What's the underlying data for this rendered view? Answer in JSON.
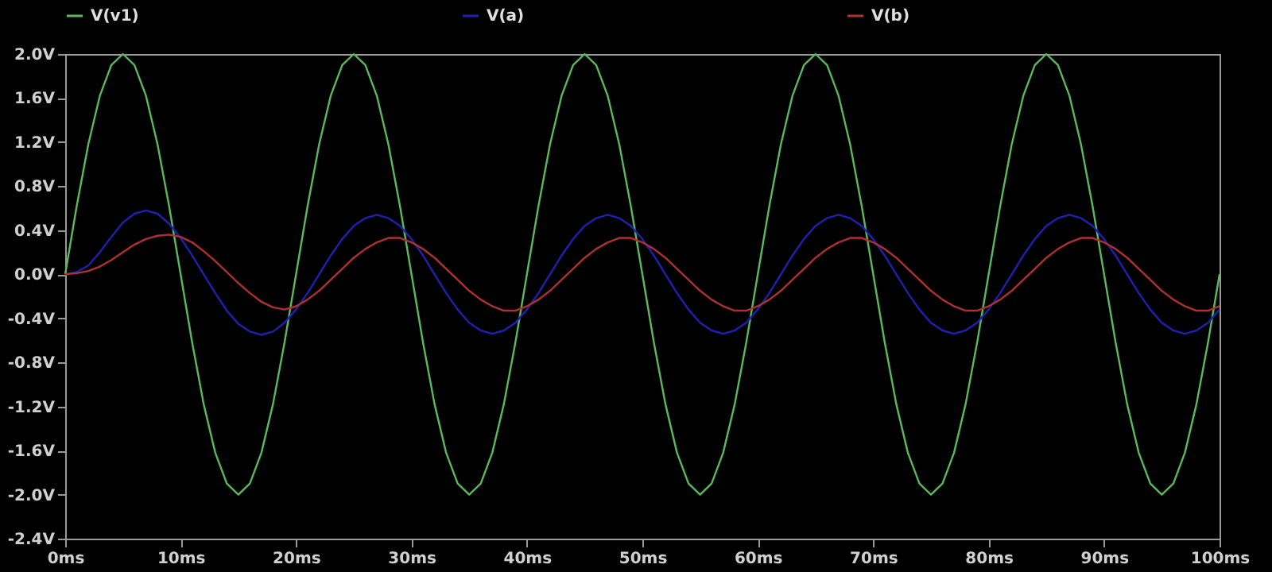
{
  "chart_data": {
    "type": "line",
    "x": [
      0,
      1,
      2,
      3,
      4,
      5,
      6,
      7,
      8,
      9,
      10,
      11,
      12,
      13,
      14,
      15,
      16,
      17,
      18,
      19,
      20,
      21,
      22,
      23,
      24,
      25,
      26,
      27,
      28,
      29,
      30,
      31,
      32,
      33,
      34,
      35,
      36,
      37,
      38,
      39,
      40,
      41,
      42,
      43,
      44,
      45,
      46,
      47,
      48,
      49,
      50,
      51,
      52,
      53,
      54,
      55,
      56,
      57,
      58,
      59,
      60,
      61,
      62,
      63,
      64,
      65,
      66,
      67,
      68,
      69,
      70,
      71,
      72,
      73,
      74,
      75,
      76,
      77,
      78,
      79,
      80,
      81,
      82,
      83,
      84,
      85,
      86,
      87,
      88,
      89,
      90,
      91,
      92,
      93,
      94,
      95,
      96,
      97,
      98,
      99,
      100
    ],
    "series": [
      {
        "name": "V(v1)",
        "color": "#5cb85c",
        "values": [
          0,
          0.62,
          1.18,
          1.62,
          1.9,
          2.0,
          1.9,
          1.62,
          1.18,
          0.62,
          0,
          -0.62,
          -1.18,
          -1.62,
          -1.9,
          -2.0,
          -1.9,
          -1.62,
          -1.18,
          -0.62,
          0,
          0.62,
          1.18,
          1.62,
          1.9,
          2.0,
          1.9,
          1.62,
          1.18,
          0.62,
          0,
          -0.62,
          -1.18,
          -1.62,
          -1.9,
          -2.0,
          -1.9,
          -1.62,
          -1.18,
          -0.62,
          0,
          0.62,
          1.18,
          1.62,
          1.9,
          2.0,
          1.9,
          1.62,
          1.18,
          0.62,
          0,
          -0.62,
          -1.18,
          -1.62,
          -1.9,
          -2.0,
          -1.9,
          -1.62,
          -1.18,
          -0.62,
          0,
          0.62,
          1.18,
          1.62,
          1.9,
          2.0,
          1.9,
          1.62,
          1.18,
          0.62,
          0,
          -0.62,
          -1.18,
          -1.62,
          -1.9,
          -2.0,
          -1.9,
          -1.62,
          -1.18,
          -0.62,
          0,
          0.62,
          1.18,
          1.62,
          1.9,
          2.0,
          1.9,
          1.62,
          1.18,
          0.62,
          0,
          -0.62,
          -1.18,
          -1.62,
          -1.9,
          -2.0,
          -1.9,
          -1.62,
          -1.18,
          -0.62,
          0
        ]
      },
      {
        "name": "V(a)",
        "color": "#2020b0",
        "values": [
          0,
          0.02,
          0.08,
          0.2,
          0.34,
          0.47,
          0.55,
          0.58,
          0.55,
          0.46,
          0.33,
          0.17,
          0,
          -0.17,
          -0.33,
          -0.45,
          -0.52,
          -0.55,
          -0.52,
          -0.44,
          -0.32,
          -0.17,
          0,
          0.17,
          0.32,
          0.44,
          0.51,
          0.54,
          0.51,
          0.44,
          0.32,
          0.17,
          0,
          -0.17,
          -0.32,
          -0.44,
          -0.51,
          -0.54,
          -0.51,
          -0.44,
          -0.32,
          -0.17,
          0,
          0.17,
          0.32,
          0.44,
          0.51,
          0.54,
          0.51,
          0.44,
          0.32,
          0.17,
          0,
          -0.17,
          -0.32,
          -0.44,
          -0.51,
          -0.54,
          -0.51,
          -0.44,
          -0.32,
          -0.17,
          0,
          0.17,
          0.32,
          0.44,
          0.51,
          0.54,
          0.51,
          0.44,
          0.32,
          0.17,
          0,
          -0.17,
          -0.32,
          -0.44,
          -0.51,
          -0.54,
          -0.51,
          -0.44,
          -0.32,
          -0.17,
          0,
          0.17,
          0.32,
          0.44,
          0.51,
          0.54,
          0.51,
          0.44,
          0.32,
          0.17,
          0,
          -0.17,
          -0.32,
          -0.44,
          -0.51,
          -0.54,
          -0.51,
          -0.44,
          -0.32
        ]
      },
      {
        "name": "V(b)",
        "color": "#b03030",
        "values": [
          0,
          0.01,
          0.03,
          0.07,
          0.13,
          0.2,
          0.27,
          0.32,
          0.35,
          0.36,
          0.34,
          0.29,
          0.21,
          0.12,
          0.02,
          -0.08,
          -0.17,
          -0.25,
          -0.3,
          -0.32,
          -0.29,
          -0.23,
          -0.15,
          -0.05,
          0.05,
          0.15,
          0.23,
          0.29,
          0.33,
          0.33,
          0.29,
          0.23,
          0.15,
          0.05,
          -0.05,
          -0.15,
          -0.23,
          -0.29,
          -0.33,
          -0.33,
          -0.29,
          -0.23,
          -0.15,
          -0.05,
          0.05,
          0.15,
          0.23,
          0.29,
          0.33,
          0.33,
          0.29,
          0.23,
          0.15,
          0.05,
          -0.05,
          -0.15,
          -0.23,
          -0.29,
          -0.33,
          -0.33,
          -0.29,
          -0.23,
          -0.15,
          -0.05,
          0.05,
          0.15,
          0.23,
          0.29,
          0.33,
          0.33,
          0.29,
          0.23,
          0.15,
          0.05,
          -0.05,
          -0.15,
          -0.23,
          -0.29,
          -0.33,
          -0.33,
          -0.29,
          -0.23,
          -0.15,
          -0.05,
          0.05,
          0.15,
          0.23,
          0.29,
          0.33,
          0.33,
          0.29,
          0.23,
          0.15,
          0.05,
          -0.05,
          -0.15,
          -0.23,
          -0.29,
          -0.33,
          -0.33,
          -0.29
        ]
      }
    ],
    "xlim": [
      0,
      100
    ],
    "xticks": [
      {
        "value": 0,
        "label": "0ms"
      },
      {
        "value": 10,
        "label": "10ms"
      },
      {
        "value": 20,
        "label": "20ms"
      },
      {
        "value": 30,
        "label": "30ms"
      },
      {
        "value": 40,
        "label": "40ms"
      },
      {
        "value": 50,
        "label": "50ms"
      },
      {
        "value": 60,
        "label": "60ms"
      },
      {
        "value": 70,
        "label": "70ms"
      },
      {
        "value": 80,
        "label": "80ms"
      },
      {
        "value": 90,
        "label": "90ms"
      },
      {
        "value": 100,
        "label": "100ms"
      }
    ],
    "ylim": [
      -2.4,
      2.0
    ],
    "yticks": [
      {
        "value": -2.4,
        "label": "-2.4V"
      },
      {
        "value": -2.0,
        "label": "-2.0V"
      },
      {
        "value": -1.6,
        "label": "-1.6V"
      },
      {
        "value": -1.2,
        "label": "-1.2V"
      },
      {
        "value": -0.8,
        "label": "-0.8V"
      },
      {
        "value": -0.4,
        "label": "-0.4V"
      },
      {
        "value": 0,
        "label": "0.0V"
      },
      {
        "value": 0.4,
        "label": "0.4V"
      },
      {
        "value": 0.8,
        "label": "0.8V"
      },
      {
        "value": 1.2,
        "label": "1.2V"
      },
      {
        "value": 1.6,
        "label": "1.6V"
      },
      {
        "value": 2.0,
        "label": "2.0V"
      }
    ],
    "legend": "top",
    "line_style": "solid",
    "marker": "none"
  }
}
